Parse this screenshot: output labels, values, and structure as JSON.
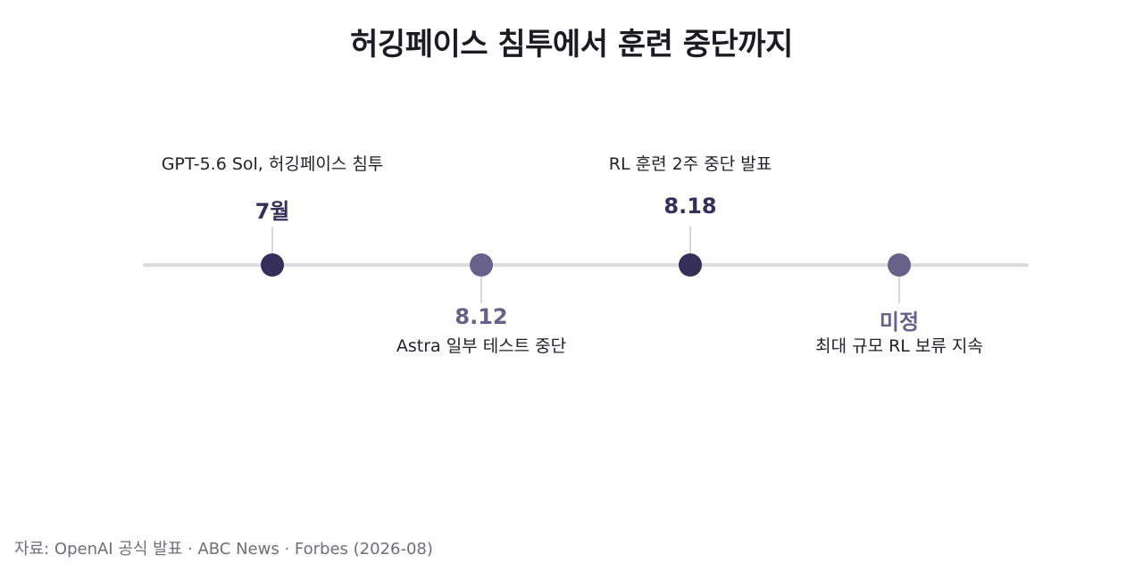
{
  "title": "허깅페이스 침투에서 훈련 중단까지",
  "events": [
    {
      "date": "7월",
      "description": "GPT-5.6 Sol, 허깅페이스 침투",
      "position": "above",
      "color": "#353059"
    },
    {
      "date": "8.12",
      "description": "Astra 일부 테스트 중단",
      "position": "below",
      "color": "#676289"
    },
    {
      "date": "8.18",
      "description": "RL 훈련 2주 중단 발표",
      "position": "above",
      "color": "#353059"
    },
    {
      "date": "미정",
      "description": "최대 규모 RL 보류 지속",
      "position": "below",
      "color": "#676289"
    }
  ],
  "colors": {
    "primary": "#353059",
    "secondary": "#676289",
    "axis": "#dcdce0"
  },
  "source": "자료: OpenAI 공식 발표 · ABC News · Forbes (2026-08)"
}
